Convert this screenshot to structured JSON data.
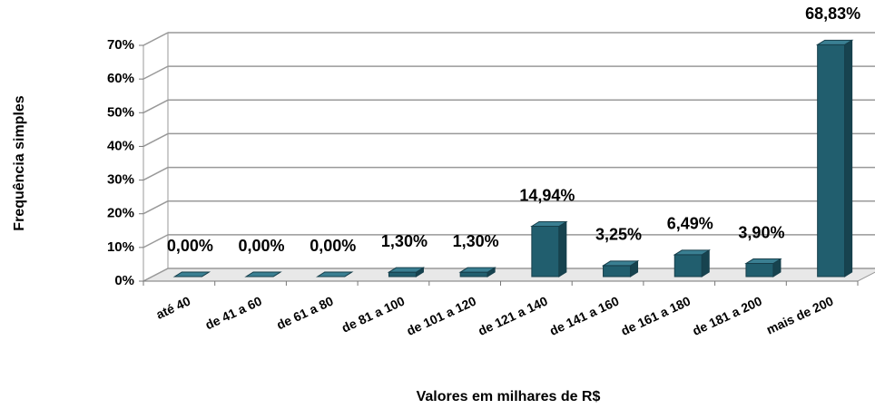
{
  "chart_data": {
    "type": "bar",
    "y_label": "Frequência simples",
    "x_label": "Valores em milhares de R$",
    "categories": [
      "até 40",
      "de 41 a 60",
      "de 61 a 80",
      "de 81 a 100",
      "de 101 a 120",
      "de 121 a 140",
      "de 141 a 160",
      "de 161 a 180",
      "de 181 a 200",
      "mais de 200"
    ],
    "values": [
      0,
      0,
      0,
      1.3,
      1.3,
      14.94,
      3.25,
      6.49,
      3.9,
      68.83
    ],
    "value_labels": [
      "0,00%",
      "0,00%",
      "0,00%",
      "1,30%",
      "1,30%",
      "14,94%",
      "3,25%",
      "6,49%",
      "3,90%",
      "68,83%"
    ],
    "color": "#215e6e",
    "ylim": [
      0,
      70
    ],
    "yticks": [
      {
        "value": 0,
        "label": "0%"
      },
      {
        "value": 10,
        "label": "10%"
      },
      {
        "value": 20,
        "label": "20%"
      },
      {
        "value": 30,
        "label": "30%"
      },
      {
        "value": 40,
        "label": "40%"
      },
      {
        "value": 50,
        "label": "50%"
      },
      {
        "value": 60,
        "label": "60%"
      },
      {
        "value": 70,
        "label": "70%"
      }
    ],
    "grid": true
  }
}
